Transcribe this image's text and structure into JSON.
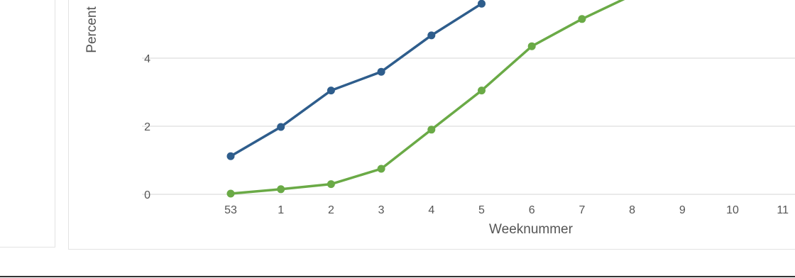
{
  "chart_data": {
    "type": "line",
    "xlabel": "Weeknummer",
    "ylabel": "Percent",
    "categories": [
      "53",
      "1",
      "2",
      "3",
      "4",
      "5",
      "6",
      "7",
      "8",
      "9",
      "10",
      "11"
    ],
    "yticks": [
      0,
      2,
      4
    ],
    "ylim": [
      0,
      5.8
    ],
    "grid": true,
    "series": [
      {
        "color": "#2e5d8c",
        "values": [
          1.12,
          1.98,
          3.05,
          3.6,
          4.67,
          5.6,
          null,
          null,
          null,
          null,
          null,
          null
        ]
      },
      {
        "color": "#6aaa46",
        "values": [
          0.02,
          0.15,
          0.3,
          0.75,
          1.9,
          3.05,
          4.35,
          5.15,
          5.85,
          null,
          null,
          null
        ]
      }
    ]
  }
}
